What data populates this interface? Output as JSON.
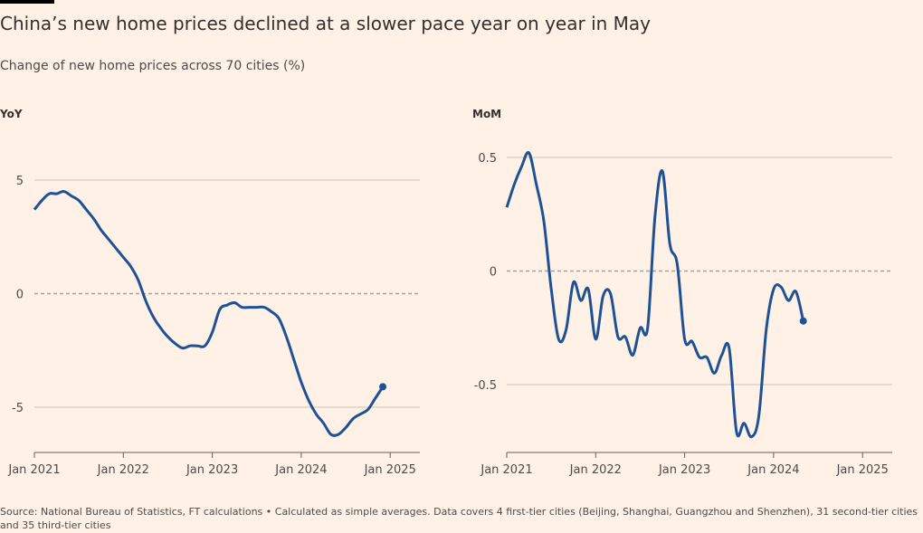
{
  "title": "China’s new home prices declined at a slower pace year on year in May",
  "subtitle": "Change of new home prices across 70 cities (%)",
  "source": "Source: National Bureau of Statistics, FT calculations • Calculated as simple averages. Data covers 4 first-tier cities (Beijing, Shanghai, Guangzhou and Shenzhen), 31 second-tier cities and 35 third-tier cities",
  "colors": {
    "background": "#fff1e5",
    "line": "#1e5195",
    "grid": "#ccc1b7",
    "zero_line": "#a8a29d"
  },
  "chart_data": [
    {
      "type": "line",
      "title": "YoY",
      "x_ticks": [
        "Jan 2021",
        "Jan 2022",
        "Jan 2023",
        "Jan 2024",
        "Jan 2025"
      ],
      "xlim": [
        "2021-01",
        "2025-05"
      ],
      "y_ticks": [
        5,
        0,
        -5
      ],
      "ylim": [
        -7,
        7
      ],
      "grid": true,
      "series": [
        {
          "x": [
            "2021-01",
            "2021-02",
            "2021-03",
            "2021-04",
            "2021-05",
            "2021-06",
            "2021-07",
            "2021-08",
            "2021-09",
            "2021-10",
            "2021-11",
            "2021-12",
            "2022-01",
            "2022-02",
            "2022-03",
            "2022-04",
            "2022-05",
            "2022-06",
            "2022-07",
            "2022-08",
            "2022-09",
            "2022-10",
            "2022-11",
            "2022-12",
            "2023-01",
            "2023-02",
            "2023-03",
            "2023-04",
            "2023-05",
            "2023-06",
            "2023-07",
            "2023-08",
            "2023-09",
            "2023-10",
            "2023-11",
            "2023-12",
            "2024-01",
            "2024-02",
            "2024-03",
            "2024-04",
            "2024-05",
            "2024-06",
            "2024-07",
            "2024-08",
            "2024-09",
            "2024-10",
            "2024-11",
            "2024-12",
            "2025-01",
            "2025-02",
            "2025-03",
            "2025-04",
            "2025-05"
          ],
          "values": [
            3.7,
            4.1,
            4.4,
            4.4,
            4.5,
            4.3,
            4.1,
            3.7,
            3.3,
            2.8,
            2.4,
            2.0,
            1.6,
            1.2,
            0.6,
            -0.3,
            -1.0,
            -1.5,
            -1.9,
            -2.2,
            -2.4,
            -2.3,
            -2.3,
            -2.3,
            -1.7,
            -0.7,
            -0.5,
            -0.4,
            -0.6,
            -0.6,
            -0.6,
            -0.6,
            -0.8,
            -1.1,
            -1.9,
            -2.9,
            -3.9,
            -4.7,
            -5.3,
            -5.7,
            -6.2,
            -6.2,
            -5.9,
            -5.5,
            -5.3,
            -5.1,
            -4.6,
            -4.1,
            null,
            null,
            null,
            null,
            null
          ],
          "last_point_marker": true
        }
      ]
    },
    {
      "type": "line",
      "title": "MoM",
      "x_ticks": [
        "Jan 2021",
        "Jan 2022",
        "Jan 2023",
        "Jan 2024",
        "Jan 2025"
      ],
      "xlim": [
        "2021-01",
        "2025-05"
      ],
      "y_ticks": [
        0.5,
        0,
        -0.5
      ],
      "ylim": [
        -0.8,
        0.55
      ],
      "grid": true,
      "series": [
        {
          "x": [
            "2021-01",
            "2021-02",
            "2021-03",
            "2021-04",
            "2021-05",
            "2021-06",
            "2021-07",
            "2021-08",
            "2021-09",
            "2021-10",
            "2021-11",
            "2021-12",
            "2022-01",
            "2022-02",
            "2022-03",
            "2022-04",
            "2022-05",
            "2022-06",
            "2022-07",
            "2022-08",
            "2022-09",
            "2022-10",
            "2022-11",
            "2022-12",
            "2023-01",
            "2023-02",
            "2023-03",
            "2023-04",
            "2023-05",
            "2023-06",
            "2023-07",
            "2023-08",
            "2023-09",
            "2023-10",
            "2023-11",
            "2023-12",
            "2024-01",
            "2024-02",
            "2024-03",
            "2024-04",
            "2024-05",
            "2024-06",
            "2024-07",
            "2024-08",
            "2024-09",
            "2024-10",
            "2024-11",
            "2024-12",
            "2025-01",
            "2025-02",
            "2025-03",
            "2025-04",
            "2025-05"
          ],
          "values": [
            0.28,
            0.38,
            0.46,
            0.52,
            0.38,
            0.22,
            -0.08,
            -0.3,
            -0.26,
            -0.05,
            -0.13,
            -0.08,
            -0.3,
            -0.11,
            -0.1,
            -0.29,
            -0.29,
            -0.37,
            -0.25,
            -0.25,
            0.24,
            0.44,
            0.12,
            0.03,
            -0.3,
            -0.31,
            -0.38,
            -0.38,
            -0.45,
            -0.37,
            -0.34,
            -0.71,
            -0.67,
            -0.73,
            -0.64,
            -0.26,
            -0.08,
            -0.07,
            -0.13,
            -0.09,
            -0.22,
            null,
            null,
            null,
            null,
            null,
            null,
            null,
            null,
            null,
            null,
            null,
            null
          ],
          "last_point_marker": true
        }
      ]
    }
  ]
}
